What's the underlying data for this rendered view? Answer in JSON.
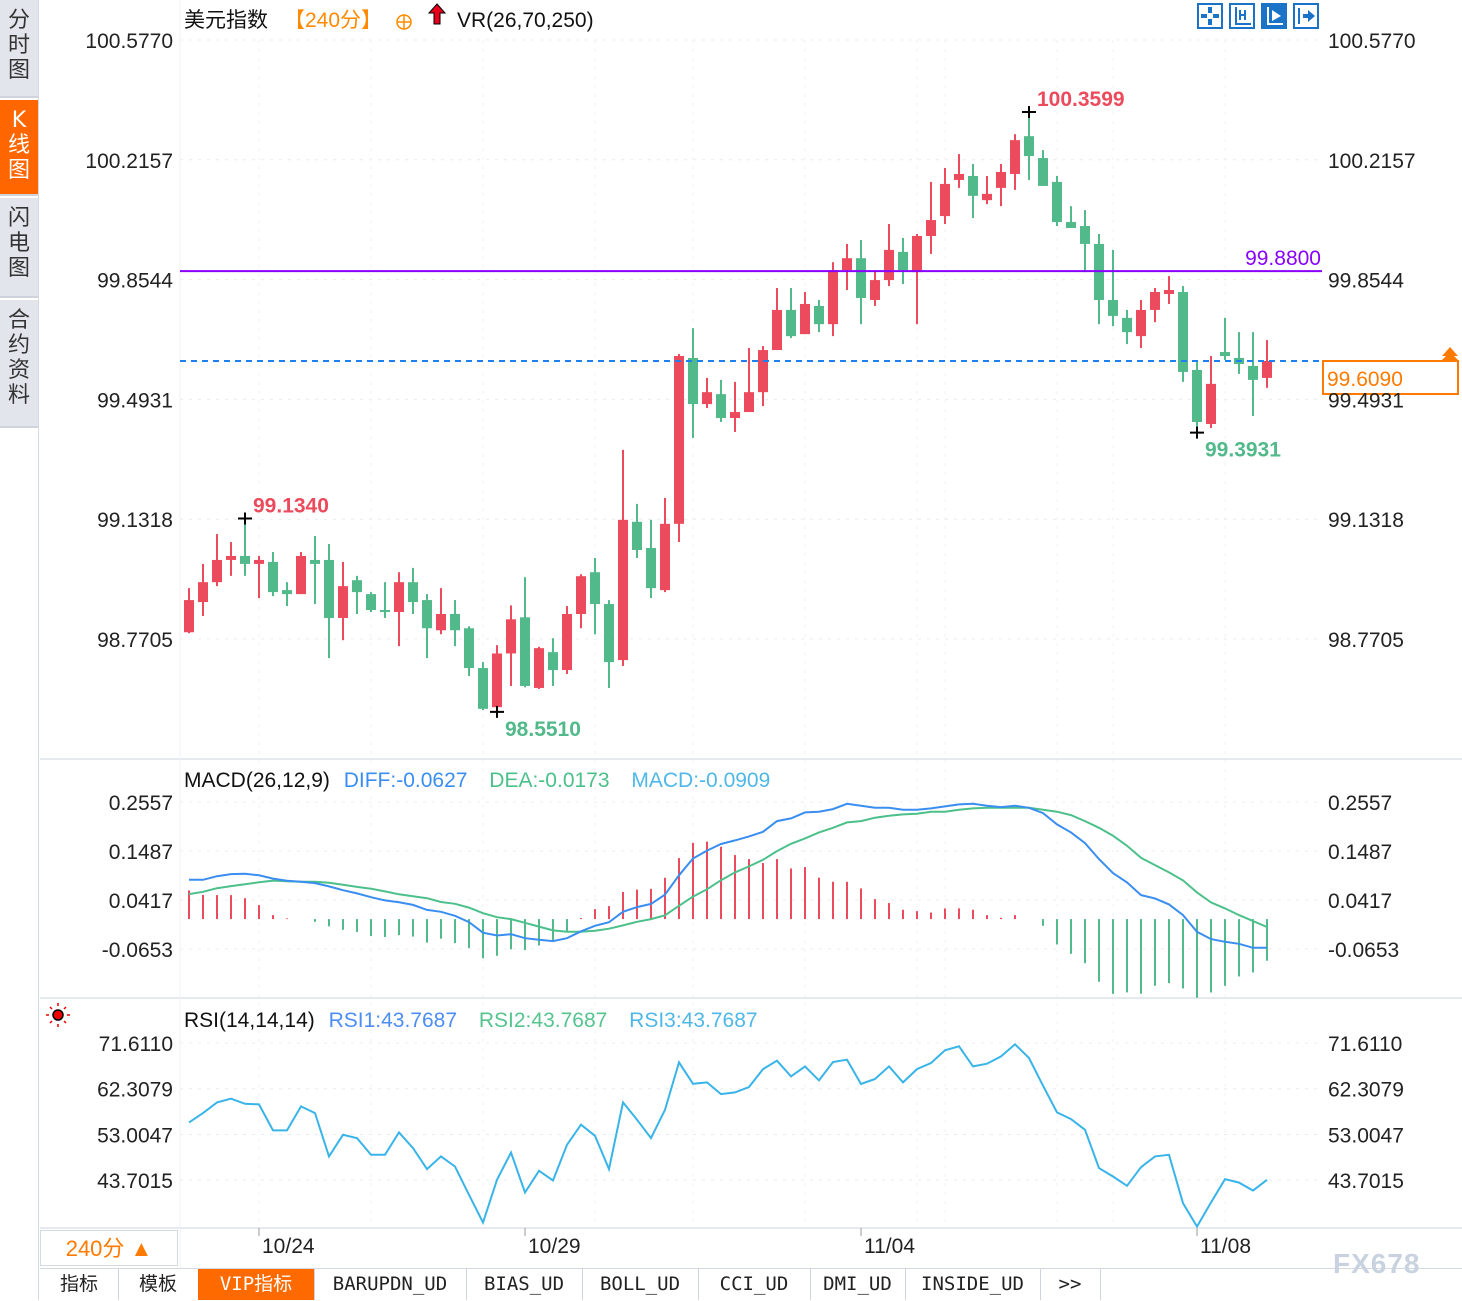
{
  "sidebar": {
    "items": [
      {
        "label": "分时图",
        "active": false
      },
      {
        "label": "K线图",
        "active": true
      },
      {
        "label": "闪电图",
        "active": false
      },
      {
        "label": "合约资料",
        "active": false
      }
    ]
  },
  "header": {
    "title": "美元指数",
    "period": "【240分】",
    "indicator": "VR(26,70,250)",
    "icons": [
      "crosshair-icon",
      "zoom-in-icon",
      "zoom-out-icon",
      "scroll-right-icon"
    ]
  },
  "colors": {
    "up": "#eb4b5c",
    "down": "#52b98a",
    "diff": "#3a8ef0",
    "dea": "#4cc08a",
    "rsi": "#39b4e8",
    "resistance_line": "#8a00ff",
    "current_price": "#ff7a00",
    "current_line": "#1e7ff0",
    "accent": "#ff6600"
  },
  "chart_data": [
    {
      "type": "candlestick",
      "name": "美元指数",
      "y_ticks": [
        "100.5770",
        "100.2157",
        "99.8544",
        "99.4931",
        "99.1318",
        "98.7705"
      ],
      "ylim": [
        98.7705,
        100.577
      ],
      "x_ticks": [
        {
          "label": "10/24",
          "index": 5
        },
        {
          "label": "10/29",
          "index": 24
        },
        {
          "label": "11/04",
          "index": 48
        },
        {
          "label": "11/08",
          "index": 72
        }
      ],
      "ohlc_fields": [
        "open",
        "high",
        "low",
        "close"
      ],
      "candles": [
        [
          98.791,
          98.924,
          98.788,
          98.888
        ],
        [
          98.882,
          98.997,
          98.84,
          98.942
        ],
        [
          98.942,
          99.087,
          98.93,
          99.009
        ],
        [
          99.009,
          99.063,
          98.961,
          99.021
        ],
        [
          99.021,
          99.134,
          98.961,
          98.997
        ],
        [
          98.997,
          99.021,
          98.894,
          99.009
        ],
        [
          99.003,
          99.033,
          98.9,
          98.912
        ],
        [
          98.918,
          98.942,
          98.87,
          98.906
        ],
        [
          98.906,
          99.033,
          98.906,
          99.021
        ],
        [
          99.009,
          99.081,
          98.876,
          98.997
        ],
        [
          99.009,
          99.057,
          98.713,
          98.834
        ],
        [
          98.834,
          99.003,
          98.767,
          98.93
        ],
        [
          98.948,
          98.961,
          98.846,
          98.912
        ],
        [
          98.906,
          98.912,
          98.852,
          98.858
        ],
        [
          98.858,
          98.942,
          98.834,
          98.852
        ],
        [
          98.852,
          98.972,
          98.749,
          98.942
        ],
        [
          98.942,
          98.985,
          98.846,
          98.882
        ],
        [
          98.888,
          98.906,
          98.713,
          98.803
        ],
        [
          98.797,
          98.924,
          98.785,
          98.846
        ],
        [
          98.846,
          98.888,
          98.749,
          98.797
        ],
        [
          98.803,
          98.809,
          98.659,
          98.683
        ],
        [
          98.683,
          98.701,
          98.556,
          98.56
        ],
        [
          98.565,
          98.752,
          98.551,
          98.727
        ],
        [
          98.727,
          98.872,
          98.629,
          98.83
        ],
        [
          98.836,
          98.957,
          98.625,
          98.629
        ],
        [
          98.623,
          98.747,
          98.62,
          98.743
        ],
        [
          98.731,
          98.773,
          98.629,
          98.677
        ],
        [
          98.677,
          98.87,
          98.665,
          98.846
        ],
        [
          98.846,
          98.966,
          98.803,
          98.96
        ],
        [
          98.972,
          99.015,
          98.785,
          98.876
        ],
        [
          98.876,
          98.888,
          98.623,
          98.701
        ],
        [
          98.707,
          99.341,
          98.689,
          99.13
        ],
        [
          99.124,
          99.178,
          99.015,
          99.039
        ],
        [
          99.045,
          99.13,
          98.894,
          98.924
        ],
        [
          98.918,
          99.196,
          98.912,
          99.118
        ],
        [
          99.118,
          99.63,
          99.063,
          99.624
        ],
        [
          99.618,
          99.708,
          99.377,
          99.479
        ],
        [
          99.479,
          99.558,
          99.467,
          99.515
        ],
        [
          99.509,
          99.552,
          99.425,
          99.437
        ],
        [
          99.437,
          99.546,
          99.395,
          99.455
        ],
        [
          99.455,
          99.648,
          99.455,
          99.515
        ],
        [
          99.515,
          99.654,
          99.473,
          99.642
        ],
        [
          99.642,
          99.829,
          99.642,
          99.763
        ],
        [
          99.763,
          99.829,
          99.678,
          99.684
        ],
        [
          99.69,
          99.817,
          99.69,
          99.781
        ],
        [
          99.775,
          99.793,
          99.696,
          99.72
        ],
        [
          99.72,
          99.907,
          99.684,
          99.883
        ],
        [
          99.883,
          99.962,
          99.823,
          99.919
        ],
        [
          99.919,
          99.974,
          99.72,
          99.799
        ],
        [
          99.793,
          99.883,
          99.775,
          99.853
        ],
        [
          99.853,
          100.022,
          99.835,
          99.944
        ],
        [
          99.938,
          99.98,
          99.841,
          99.883
        ],
        [
          99.877,
          99.992,
          99.72,
          99.986
        ],
        [
          99.986,
          100.149,
          99.932,
          100.034
        ],
        [
          100.046,
          100.191,
          100.022,
          100.143
        ],
        [
          100.155,
          100.233,
          100.131,
          100.173
        ],
        [
          100.167,
          100.203,
          100.04,
          100.107
        ],
        [
          100.094,
          100.167,
          100.082,
          100.113
        ],
        [
          100.131,
          100.203,
          100.076,
          100.179
        ],
        [
          100.173,
          100.293,
          100.125,
          100.275
        ],
        [
          100.287,
          100.3599,
          100.155,
          100.227
        ],
        [
          100.221,
          100.245,
          100.137,
          100.137
        ],
        [
          100.149,
          100.167,
          100.016,
          100.028
        ],
        [
          100.028,
          100.076,
          100.01,
          100.01
        ],
        [
          100.016,
          100.064,
          99.877,
          99.962
        ],
        [
          99.962,
          99.992,
          99.72,
          99.793
        ],
        [
          99.793,
          99.944,
          99.714,
          99.745
        ],
        [
          99.739,
          99.763,
          99.66,
          99.696
        ],
        [
          99.684,
          99.793,
          99.648,
          99.763
        ],
        [
          99.763,
          99.829,
          99.726,
          99.817
        ],
        [
          99.811,
          99.865,
          99.781,
          99.823
        ],
        [
          99.817,
          99.835,
          99.546,
          99.576
        ],
        [
          99.582,
          99.606,
          99.3931,
          99.425
        ],
        [
          99.419,
          99.624,
          99.407,
          99.54
        ],
        [
          99.636,
          99.739,
          99.612,
          99.624
        ],
        [
          99.618,
          99.696,
          99.57,
          99.6
        ],
        [
          99.594,
          99.696,
          99.443,
          99.552
        ],
        [
          99.558,
          99.672,
          99.528,
          99.609
        ]
      ],
      "annotations": [
        {
          "label": "100.3599",
          "index": 60,
          "kind": "high"
        },
        {
          "label": "99.1340",
          "index": 4,
          "kind": "high"
        },
        {
          "label": "98.5510",
          "index": 22,
          "kind": "low"
        },
        {
          "label": "99.3931",
          "index": 72,
          "kind": "low"
        }
      ],
      "horizontal_line": {
        "value": 99.88,
        "label": "99.8800"
      },
      "current_price": {
        "value": 99.609,
        "label": "99.6090"
      }
    },
    {
      "type": "macd",
      "title": "MACD(26,12,9)",
      "legend": {
        "diff": "DIFF:-0.0627",
        "dea": "DEA:-0.0173",
        "macd": "MACD:-0.0909"
      },
      "y_ticks": [
        "0.2557",
        "0.1487",
        "0.0417",
        "-0.0653"
      ],
      "diff": [
        0.0859,
        0.0859,
        0.0937,
        0.0983,
        0.099,
        0.0957,
        0.0885,
        0.0836,
        0.0815,
        0.0785,
        0.0714,
        0.0631,
        0.0562,
        0.0479,
        0.0409,
        0.0367,
        0.0309,
        0.02,
        0.016,
        0.0073,
        -0.0066,
        -0.0298,
        -0.0358,
        -0.0329,
        -0.0418,
        -0.0451,
        -0.048,
        -0.0416,
        -0.0266,
        -0.0146,
        -0.0067,
        0.0159,
        0.0262,
        0.0331,
        0.0535,
        0.0957,
        0.1324,
        0.1496,
        0.164,
        0.1718,
        0.1805,
        0.1907,
        0.214,
        0.2198,
        0.2329,
        0.2344,
        0.2402,
        0.2518,
        0.2475,
        0.2431,
        0.2431,
        0.2387,
        0.2387,
        0.2416,
        0.246,
        0.2504,
        0.2518,
        0.2475,
        0.2445,
        0.2475,
        0.2431,
        0.2314,
        0.2067,
        0.1892,
        0.1659,
        0.131,
        0.1004,
        0.0801,
        0.0524,
        0.0451,
        0.032,
        0.0087,
        -0.0277,
        -0.0437,
        -0.0495,
        -0.0539,
        -0.0626,
        -0.0627
      ],
      "dea": [
        0.0546,
        0.0595,
        0.0675,
        0.0721,
        0.0762,
        0.0804,
        0.0841,
        0.0828,
        0.0815,
        0.0815,
        0.0793,
        0.0748,
        0.0702,
        0.0664,
        0.0604,
        0.0542,
        0.05,
        0.0457,
        0.0374,
        0.0335,
        0.0251,
        0.0129,
        0.0042,
        0.0,
        -0.008,
        -0.0163,
        -0.0246,
        -0.0277,
        -0.0277,
        -0.0255,
        -0.0209,
        -0.0137,
        -0.006,
        0.0001,
        0.0084,
        0.0291,
        0.0492,
        0.065,
        0.085,
        0.1019,
        0.115,
        0.1295,
        0.1485,
        0.1645,
        0.1761,
        0.1892,
        0.1994,
        0.2111,
        0.214,
        0.2213,
        0.2256,
        0.2285,
        0.23,
        0.2344,
        0.2344,
        0.2387,
        0.2416,
        0.2431,
        0.2431,
        0.2431,
        0.2431,
        0.2387,
        0.2344,
        0.2271,
        0.214,
        0.1994,
        0.182,
        0.1601,
        0.1339,
        0.1179,
        0.1019,
        0.0844,
        0.0582,
        0.0364,
        0.0233,
        0.0087,
        -0.0044,
        -0.0173
      ]
    },
    {
      "type": "line",
      "title": "RSI(14,14,14)",
      "legend": {
        "rsi1": "RSI1:43.7687",
        "rsi2": "RSI2:43.7687",
        "rsi3": "RSI3:43.7687"
      },
      "y_ticks": [
        "71.6110",
        "62.3079",
        "53.0047",
        "43.7015"
      ],
      "rsi": [
        55.45,
        57.35,
        59.53,
        60.27,
        59.25,
        59.12,
        53.82,
        53.82,
        58.71,
        57.35,
        48.53,
        52.94,
        52.26,
        48.87,
        48.87,
        53.42,
        50.22,
        45.95,
        48.53,
        46.49,
        40.72,
        35.09,
        43.78,
        49.34,
        41.2,
        45.61,
        43.64,
        50.9,
        54.98,
        52.74,
        45.95,
        59.53,
        56.0,
        52.26,
        58.03,
        67.67,
        63.3,
        63.6,
        61.22,
        61.56,
        62.65,
        66.31,
        68.01,
        64.82,
        66.86,
        64.01,
        67.74,
        68.22,
        63.26,
        64.28,
        66.86,
        63.6,
        66.31,
        67.54,
        70.12,
        70.93,
        66.86,
        67.4,
        68.89,
        71.34,
        68.56,
        62.92,
        57.49,
        56.13,
        53.96,
        46.15,
        44.45,
        42.55,
        46.35,
        48.53,
        48.87,
        39.02,
        34.27,
        39.16,
        43.9,
        43.2,
        41.6,
        43.77
      ]
    }
  ],
  "footer": {
    "period_button": "240分 ▲",
    "tabs": [
      {
        "label": "指标",
        "active": false
      },
      {
        "label": "模板",
        "active": false
      },
      {
        "label": "VIP指标",
        "active": true
      },
      {
        "label": "BARUPDN_UD",
        "active": false
      },
      {
        "label": "BIAS_UD",
        "active": false
      },
      {
        "label": "BOLL_UD",
        "active": false
      },
      {
        "label": "CCI_UD",
        "active": false
      },
      {
        "label": "DMI_UD",
        "active": false
      },
      {
        "label": "INSIDE_UD",
        "active": false
      },
      {
        "label": ">>",
        "active": false
      }
    ],
    "watermark": "FX678"
  }
}
